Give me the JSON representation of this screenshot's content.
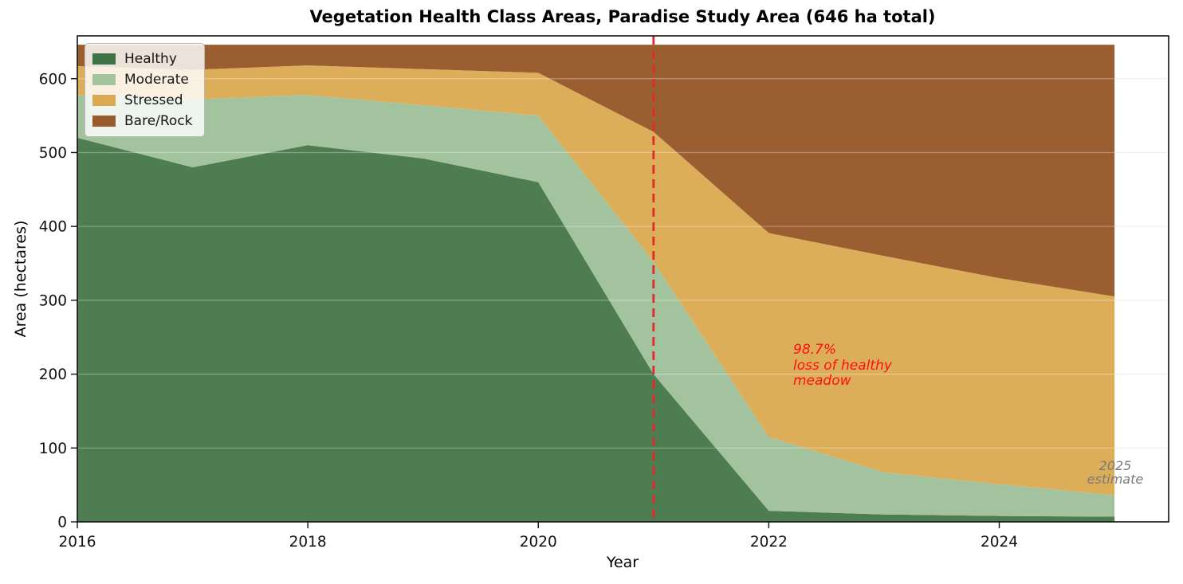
{
  "title": "Vegetation Health Class Areas, Paradise Study Area (646 ha total)",
  "xlabel": "Year",
  "ylabel": "Area (hectares)",
  "legend": {
    "position": "upper left",
    "items": [
      {
        "label": "Healthy",
        "color": "#3e7347"
      },
      {
        "label": "Moderate",
        "color": "#a2c49d"
      },
      {
        "label": "Stressed",
        "color": "#d9a851"
      },
      {
        "label": "Bare/Rock",
        "color": "#9a5c2c"
      }
    ]
  },
  "annotations": {
    "loss": {
      "lines": [
        "98.7%",
        "loss of healthy",
        "meadow"
      ],
      "color": "#ff0f0f"
    },
    "estimate": {
      "lines": [
        "2025",
        "estimate"
      ],
      "color": "#7a7a7a"
    }
  },
  "chart_data": {
    "type": "area",
    "stacked": true,
    "title": "Vegetation Health Class Areas, Paradise Study Area (646 ha total)",
    "xlabel": "Year",
    "ylabel": "Area (hectares)",
    "total_ha": 646,
    "x": [
      2016,
      2017,
      2018,
      2019,
      2020,
      2021,
      2022,
      2023,
      2024,
      2025
    ],
    "series": [
      {
        "name": "Healthy",
        "color": "#4d7d50",
        "values": [
          520,
          480,
          510,
          492,
          460,
          200,
          15,
          10,
          8,
          7
        ]
      },
      {
        "name": "Moderate",
        "color": "#a3c39e",
        "values": [
          58,
          92,
          68,
          72,
          90,
          152,
          100,
          57,
          43,
          29
        ]
      },
      {
        "name": "Stressed",
        "color": "#ddae5a",
        "values": [
          39,
          40,
          40,
          49,
          58,
          176,
          276,
          293,
          279,
          269
        ]
      },
      {
        "name": "Bare/Rock",
        "color": "#9a5e31",
        "values": [
          29,
          34,
          28,
          33,
          38,
          118,
          255,
          286,
          316,
          341
        ]
      }
    ],
    "xticks": [
      2016,
      2018,
      2020,
      2022,
      2024
    ],
    "yticks": [
      0,
      100,
      200,
      300,
      400,
      500,
      600
    ],
    "xlim": [
      2016,
      2025.47
    ],
    "ylim": [
      0,
      658
    ],
    "grid": "horizontal",
    "vline": {
      "x": 2021,
      "color": "#e12a2a",
      "style": "dashed"
    },
    "legend_position": "upper left"
  }
}
